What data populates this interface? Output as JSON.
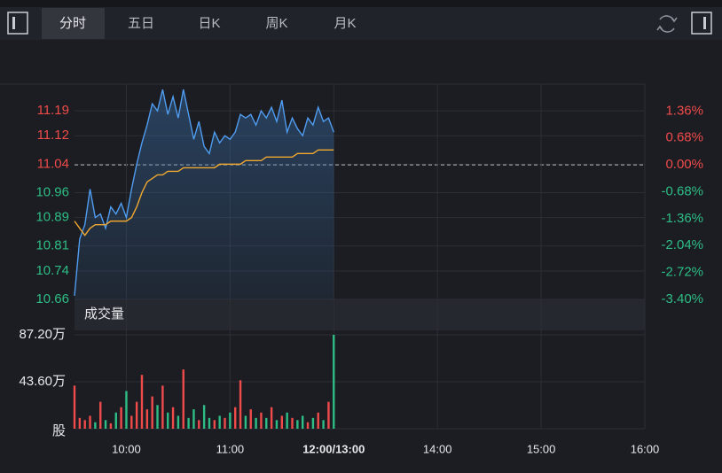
{
  "toolbar": {
    "tabs": [
      "分时",
      "五日",
      "日K",
      "周K",
      "月K"
    ]
  },
  "chart_data": {
    "type": "line",
    "x": [
      "09:30",
      "09:33",
      "09:36",
      "09:39",
      "09:42",
      "09:45",
      "09:48",
      "09:51",
      "09:54",
      "09:57",
      "10:00",
      "10:03",
      "10:06",
      "10:09",
      "10:12",
      "10:15",
      "10:18",
      "10:21",
      "10:24",
      "10:27",
      "10:30",
      "10:33",
      "10:36",
      "10:39",
      "10:42",
      "10:45",
      "10:48",
      "10:51",
      "10:54",
      "10:57",
      "11:00",
      "11:03",
      "11:06",
      "11:09",
      "11:12",
      "11:15",
      "11:18",
      "11:21",
      "11:24",
      "11:27",
      "11:30",
      "11:33",
      "11:36",
      "11:39",
      "11:42",
      "11:45",
      "11:48",
      "11:51",
      "11:54",
      "11:57",
      "12:00"
    ],
    "series": [
      {
        "color": "#4f9cf0",
        "values": [
          10.67,
          10.83,
          10.87,
          10.97,
          10.89,
          10.9,
          10.86,
          10.92,
          10.9,
          10.93,
          10.89,
          10.97,
          11.04,
          11.1,
          11.15,
          11.21,
          11.19,
          11.25,
          11.18,
          11.23,
          11.17,
          11.25,
          11.18,
          11.11,
          11.16,
          11.09,
          11.07,
          11.13,
          11.1,
          11.12,
          11.11,
          11.13,
          11.18,
          11.17,
          11.18,
          11.15,
          11.19,
          11.17,
          11.2,
          11.16,
          11.22,
          11.13,
          11.17,
          11.14,
          11.12,
          11.17,
          11.15,
          11.2,
          11.16,
          11.17,
          11.13
        ]
      },
      {
        "color": "#f0a830",
        "values": [
          10.88,
          10.86,
          10.84,
          10.86,
          10.87,
          10.87,
          10.87,
          10.88,
          10.88,
          10.88,
          10.88,
          10.89,
          10.92,
          10.96,
          10.99,
          11.0,
          11.01,
          11.01,
          11.02,
          11.02,
          11.02,
          11.03,
          11.03,
          11.03,
          11.03,
          11.03,
          11.03,
          11.03,
          11.04,
          11.04,
          11.04,
          11.04,
          11.04,
          11.05,
          11.05,
          11.05,
          11.05,
          11.06,
          11.06,
          11.06,
          11.06,
          11.06,
          11.06,
          11.07,
          11.07,
          11.07,
          11.07,
          11.08,
          11.08,
          11.08,
          11.08
        ]
      }
    ],
    "xlim": [
      "09:30",
      "16:00"
    ],
    "session_break": [
      "12:00",
      "13:00"
    ],
    "xticks": [
      "10:00",
      "11:00",
      {
        "value": "12:00",
        "label": "12:00/13:00"
      },
      "14:00",
      "15:00",
      "16:00"
    ],
    "ylim": [
      10.66,
      11.265
    ],
    "yticks": [
      11.19,
      11.12,
      11.04,
      10.96,
      10.89,
      10.81,
      10.74,
      10.66
    ],
    "y2lim": [
      -3.4,
      2.04
    ],
    "y2ticks": [
      {
        "value": 1.36,
        "label": "1.36%"
      },
      {
        "value": 0.68,
        "label": "0.68%"
      },
      {
        "value": 0,
        "label": "0.00%"
      },
      {
        "value": -0.68,
        "label": "-0.68%"
      },
      {
        "value": -1.36,
        "label": "-1.36%"
      },
      {
        "value": -2.04,
        "label": "-2.04%"
      },
      {
        "value": -2.72,
        "label": "-2.72%"
      },
      {
        "value": -3.4,
        "label": "-3.40%"
      }
    ],
    "up_color": "#ef4b4b",
    "down_color": "#2ebd85",
    "grid": true,
    "volume": {
      "title": "成交量",
      "values": [
        40,
        10,
        8,
        12,
        6,
        25,
        8,
        5,
        15,
        20,
        35,
        12,
        25,
        50,
        18,
        30,
        22,
        40,
        15,
        20,
        12,
        55,
        10,
        18,
        8,
        22,
        10,
        8,
        12,
        10,
        15,
        20,
        45,
        12,
        18,
        10,
        15,
        10,
        20,
        8,
        12,
        15,
        10,
        8,
        12,
        6,
        10,
        15,
        8,
        25,
        87.2
      ],
      "ylim": [
        0,
        87.2
      ],
      "yticks": [
        {
          "value": 87.2,
          "label": "87.20万"
        },
        {
          "value": 43.6,
          "label": "43.60万"
        },
        {
          "value": 0,
          "label": "股"
        }
      ]
    }
  }
}
